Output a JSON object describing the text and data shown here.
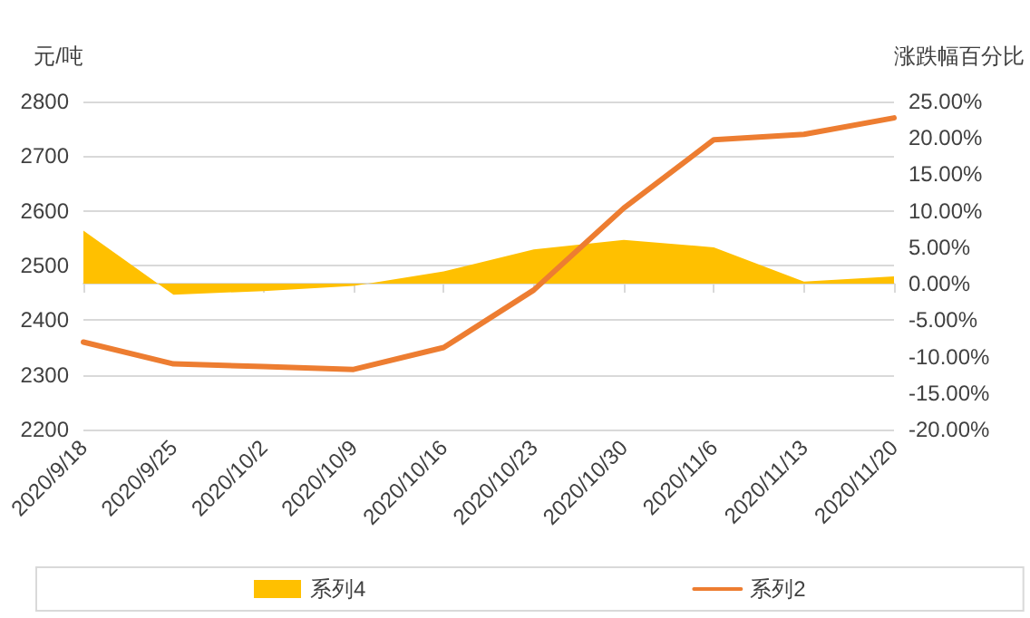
{
  "chart_data": {
    "type": "line",
    "categories": [
      "2020/9/18",
      "2020/9/25",
      "2020/10/2",
      "2020/10/9",
      "2020/10/16",
      "2020/10/23",
      "2020/10/30",
      "2020/11/6",
      "2020/11/13",
      "2020/11/20"
    ],
    "ylabel": "元/吨",
    "y2label": "涨跌幅百分比",
    "ylim": [
      2200,
      2800
    ],
    "yticks": [
      2200,
      2300,
      2400,
      2500,
      2600,
      2700,
      2800
    ],
    "y2lim": [
      -20,
      25
    ],
    "y2ticks": [
      {
        "value": -20,
        "label": "-20.00%"
      },
      {
        "value": -15,
        "label": "-15.00%"
      },
      {
        "value": -10,
        "label": "-10.00%"
      },
      {
        "value": -5,
        "label": "-5.00%"
      },
      {
        "value": 0,
        "label": "0.00%"
      },
      {
        "value": 5,
        "label": "5.00%"
      },
      {
        "value": 10,
        "label": "10.00%"
      },
      {
        "value": 15,
        "label": "15.00%"
      },
      {
        "value": 20,
        "label": "20.00%"
      },
      {
        "value": 25,
        "label": "25.00%"
      }
    ],
    "series": [
      {
        "name": "系列4",
        "type": "area",
        "axis": "y2",
        "color": "#ffc000",
        "values": [
          7.3,
          -1.5,
          -1,
          -0.3,
          1.7,
          4.7,
          6,
          5,
          0.3,
          1
        ]
      },
      {
        "name": "系列2",
        "color": "#ed7d31",
        "values": [
          2360,
          2320,
          2315,
          2310,
          2350,
          2455,
          2605,
          2730,
          2740,
          2770
        ]
      }
    ],
    "grid": "y",
    "legend": "bottom",
    "marker": "none",
    "line_style": "solid"
  }
}
